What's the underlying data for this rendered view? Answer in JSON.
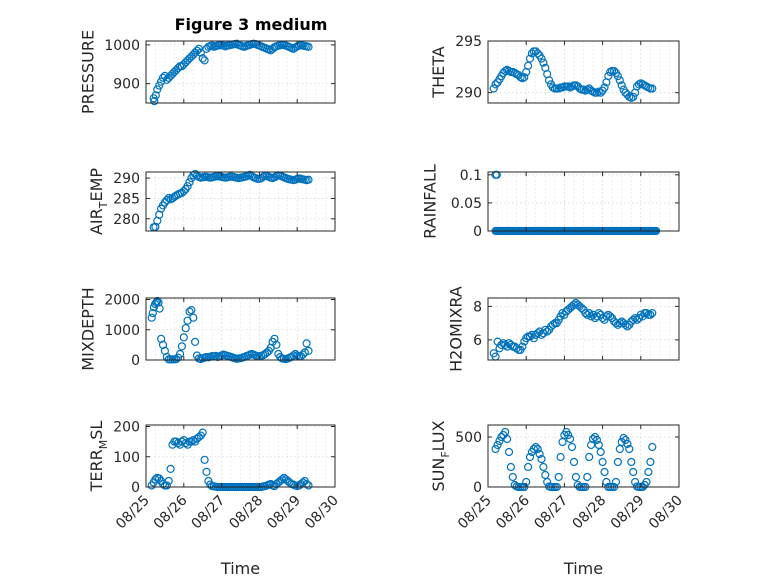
{
  "figure": {
    "title": "Figure 3 medium",
    "marker_color": "#0072bd"
  },
  "chart_data": [
    {
      "type": "scatter",
      "ylabel": "PRESSURE",
      "xlabel": "",
      "ylim": [
        850,
        1010
      ],
      "yticks": [
        900,
        1000
      ],
      "xticks": [
        "08/25",
        "08/26",
        "08/27",
        "08/28",
        "08/29",
        "08/30"
      ],
      "grid": true,
      "x_day": [
        0.2,
        0.22,
        0.26,
        0.3,
        0.35,
        0.4,
        0.45,
        0.5,
        0.55,
        0.6,
        0.65,
        0.7,
        0.75,
        0.8,
        0.85,
        0.9,
        0.95,
        1.0,
        1.05,
        1.1,
        1.15,
        1.2,
        1.25,
        1.3,
        1.35,
        1.4,
        1.45,
        1.5,
        1.55,
        1.6,
        1.65,
        1.7,
        1.75,
        1.8,
        1.85,
        1.9,
        1.95,
        2.0,
        2.05,
        2.1,
        2.15,
        2.2,
        2.25,
        2.3,
        2.35,
        2.4,
        2.45,
        2.5,
        2.55,
        2.6,
        2.65,
        2.7,
        2.75,
        2.8,
        2.85,
        2.9,
        2.95,
        3.0,
        3.05,
        3.1,
        3.15,
        3.2,
        3.25,
        3.3,
        3.35,
        3.4,
        3.45,
        3.5,
        3.55,
        3.6,
        3.65,
        3.7,
        3.75,
        3.8,
        3.85,
        3.9,
        3.95,
        4.0,
        4.05,
        4.1,
        4.15,
        4.2,
        4.25,
        4.3
      ],
      "y": [
        862,
        855,
        870,
        885,
        895,
        905,
        915,
        920,
        910,
        915,
        920,
        925,
        930,
        935,
        940,
        945,
        945,
        950,
        955,
        960,
        965,
        970,
        975,
        980,
        985,
        990,
        980,
        965,
        960,
        990,
        995,
        997,
        998,
        995,
        997,
        998,
        999,
        1000,
        998,
        996,
        998,
        999,
        1000,
        1001,
        1002,
        1003,
        1000,
        998,
        996,
        995,
        997,
        999,
        1000,
        1002,
        1003,
        1002,
        1000,
        998,
        996,
        994,
        992,
        990,
        988,
        986,
        990,
        994,
        996,
        998,
        999,
        1000,
        1000,
        998,
        996,
        994,
        992,
        990,
        993,
        996,
        998,
        999,
        998,
        997,
        996,
        995
      ]
    },
    {
      "type": "scatter",
      "ylabel": "THETA",
      "xlabel": "",
      "ylim": [
        289,
        295
      ],
      "yticks": [
        290,
        295
      ],
      "xticks": [
        "08/25",
        "08/26",
        "08/27",
        "08/28",
        "08/29",
        "08/30"
      ],
      "grid": true,
      "x_day": [
        0.15,
        0.2,
        0.25,
        0.3,
        0.35,
        0.4,
        0.45,
        0.5,
        0.55,
        0.6,
        0.65,
        0.7,
        0.75,
        0.8,
        0.85,
        0.9,
        0.95,
        1.0,
        1.05,
        1.1,
        1.15,
        1.2,
        1.25,
        1.3,
        1.35,
        1.4,
        1.45,
        1.5,
        1.55,
        1.6,
        1.65,
        1.7,
        1.75,
        1.8,
        1.85,
        1.9,
        1.95,
        2.0,
        2.05,
        2.1,
        2.15,
        2.2,
        2.25,
        2.3,
        2.35,
        2.4,
        2.45,
        2.5,
        2.55,
        2.6,
        2.65,
        2.7,
        2.75,
        2.8,
        2.85,
        2.9,
        2.95,
        3.0,
        3.05,
        3.1,
        3.15,
        3.2,
        3.25,
        3.3,
        3.35,
        3.4,
        3.45,
        3.5,
        3.55,
        3.6,
        3.65,
        3.7,
        3.75,
        3.8,
        3.85,
        3.9,
        3.95,
        4.0,
        4.05,
        4.1,
        4.15,
        4.2,
        4.25,
        4.3
      ],
      "y": [
        290.4,
        290.8,
        291.0,
        291.3,
        291.6,
        291.9,
        292.1,
        292.2,
        292.1,
        292.0,
        292.0,
        291.9,
        291.8,
        291.7,
        291.5,
        291.4,
        291.5,
        292.0,
        292.6,
        293.3,
        293.8,
        294.0,
        294.0,
        293.8,
        293.6,
        293.3,
        292.9,
        292.4,
        291.8,
        291.2,
        290.8,
        290.5,
        290.4,
        290.4,
        290.4,
        290.5,
        290.5,
        290.6,
        290.6,
        290.6,
        290.5,
        290.6,
        290.7,
        290.7,
        290.6,
        290.4,
        290.3,
        290.3,
        290.2,
        290.3,
        290.4,
        290.2,
        290.1,
        290.0,
        290.0,
        290.1,
        290.0,
        290.2,
        290.5,
        291.0,
        291.6,
        292.0,
        292.1,
        292.1,
        291.9,
        291.6,
        291.2,
        290.7,
        290.3,
        290.0,
        289.8,
        289.6,
        289.5,
        289.6,
        290.0,
        290.6,
        290.8,
        290.9,
        290.8,
        290.7,
        290.6,
        290.5,
        290.4,
        290.4
      ]
    },
    {
      "type": "scatter",
      "ylabel": "AIR_TEMP",
      "ylabel_main": "AIR",
      "ylabel_sub": "T",
      "ylabel_rest": "EMP",
      "xlabel": "",
      "ylim": [
        277,
        291.5
      ],
      "yticks": [
        280,
        285,
        290
      ],
      "xticks": [
        "08/25",
        "08/26",
        "08/27",
        "08/28",
        "08/29",
        "08/30"
      ],
      "grid": true,
      "x_day": [
        0.2,
        0.25,
        0.3,
        0.35,
        0.4,
        0.45,
        0.5,
        0.55,
        0.6,
        0.65,
        0.7,
        0.75,
        0.8,
        0.85,
        0.9,
        0.95,
        1.0,
        1.05,
        1.1,
        1.15,
        1.2,
        1.25,
        1.3,
        1.35,
        1.4,
        1.45,
        1.5,
        1.55,
        1.6,
        1.65,
        1.7,
        1.75,
        1.8,
        1.85,
        1.9,
        1.95,
        2.0,
        2.05,
        2.1,
        2.15,
        2.2,
        2.25,
        2.3,
        2.35,
        2.4,
        2.45,
        2.5,
        2.55,
        2.6,
        2.65,
        2.7,
        2.75,
        2.8,
        2.85,
        2.9,
        2.95,
        3.0,
        3.05,
        3.1,
        3.15,
        3.2,
        3.25,
        3.3,
        3.35,
        3.4,
        3.45,
        3.5,
        3.55,
        3.6,
        3.65,
        3.7,
        3.75,
        3.8,
        3.85,
        3.9,
        3.95,
        4.0,
        4.05,
        4.1,
        4.15,
        4.2,
        4.25,
        4.3
      ],
      "y": [
        277.9,
        278.0,
        279.5,
        281.0,
        282.5,
        283.3,
        284.0,
        284.6,
        285.1,
        284.8,
        285.0,
        285.4,
        285.7,
        286.0,
        286.2,
        286.4,
        286.8,
        287.3,
        288.0,
        289.0,
        290.0,
        290.7,
        291.0,
        290.6,
        290.3,
        290.1,
        290.2,
        290.3,
        290.3,
        290.2,
        290.1,
        290.2,
        290.3,
        290.4,
        290.5,
        290.4,
        290.3,
        290.2,
        290.1,
        290.2,
        290.3,
        290.4,
        290.3,
        290.2,
        290.1,
        290.0,
        290.1,
        290.2,
        290.3,
        290.4,
        290.6,
        290.8,
        290.5,
        290.2,
        290.0,
        289.8,
        289.8,
        290.0,
        290.3,
        290.6,
        290.5,
        290.3,
        290.1,
        290.0,
        290.2,
        290.5,
        290.7,
        290.6,
        290.4,
        290.2,
        290.0,
        289.8,
        289.7,
        289.6,
        289.5,
        289.6,
        289.8,
        289.9,
        289.8,
        289.7,
        289.6,
        289.5,
        289.6
      ]
    },
    {
      "type": "scatter",
      "ylabel": "RAINFALL",
      "xlabel": "",
      "ylim": [
        0,
        0.105
      ],
      "yticks": [
        0,
        0.05,
        0.1
      ],
      "ytick_labels": [
        "0",
        "0.05",
        "0.1"
      ],
      "xticks": [
        "08/25",
        "08/26",
        "08/27",
        "08/28",
        "08/29",
        "08/30"
      ],
      "grid": true,
      "x_start": 0.2,
      "x_end": 4.4,
      "x_step": 0.025,
      "spikes": [
        {
          "x": 0.2,
          "y": 0.1
        },
        {
          "x": 0.23,
          "y": 0.1
        }
      ],
      "baseline_value": 0
    },
    {
      "type": "scatter",
      "ylabel": "MIXDEPTH",
      "xlabel": "",
      "ylim": [
        0,
        2050
      ],
      "yticks": [
        0,
        1000,
        2000
      ],
      "xticks": [
        "08/25",
        "08/26",
        "08/27",
        "08/28",
        "08/29",
        "08/30"
      ],
      "grid": true,
      "x_day": [
        0.15,
        0.18,
        0.21,
        0.24,
        0.27,
        0.3,
        0.33,
        0.36,
        0.4,
        0.45,
        0.5,
        0.55,
        0.6,
        0.65,
        0.7,
        0.75,
        0.8,
        0.85,
        0.9,
        0.95,
        1.0,
        1.05,
        1.1,
        1.15,
        1.2,
        1.25,
        1.3,
        1.35,
        1.4,
        1.45,
        1.5,
        1.55,
        1.6,
        1.65,
        1.7,
        1.75,
        1.8,
        1.85,
        1.9,
        1.95,
        2.0,
        2.05,
        2.1,
        2.15,
        2.2,
        2.25,
        2.3,
        2.35,
        2.4,
        2.45,
        2.5,
        2.55,
        2.6,
        2.65,
        2.7,
        2.75,
        2.8,
        2.85,
        2.9,
        2.95,
        3.0,
        3.05,
        3.1,
        3.15,
        3.2,
        3.25,
        3.3,
        3.35,
        3.4,
        3.45,
        3.5,
        3.55,
        3.6,
        3.65,
        3.7,
        3.75,
        3.8,
        3.85,
        3.9,
        3.95,
        4.0,
        4.05,
        4.1,
        4.15,
        4.2,
        4.25,
        4.3
      ],
      "y": [
        1400,
        1550,
        1750,
        1850,
        1900,
        1950,
        1900,
        1700,
        700,
        500,
        300,
        100,
        20,
        20,
        20,
        20,
        30,
        80,
        200,
        450,
        750,
        1050,
        1300,
        1600,
        1650,
        1400,
        600,
        150,
        50,
        30,
        60,
        80,
        100,
        90,
        110,
        130,
        120,
        140,
        100,
        120,
        150,
        180,
        160,
        140,
        120,
        100,
        80,
        60,
        40,
        50,
        60,
        80,
        100,
        130,
        150,
        180,
        200,
        180,
        150,
        130,
        120,
        140,
        160,
        200,
        250,
        300,
        400,
        600,
        700,
        500,
        200,
        100,
        50,
        40,
        30,
        50,
        80,
        100,
        150,
        200,
        150,
        120,
        130,
        180,
        250,
        550,
        300
      ]
    },
    {
      "type": "scatter",
      "ylabel": "H2OMIXRA",
      "xlabel": "",
      "ylim": [
        4.8,
        8.5
      ],
      "yticks": [
        6,
        8
      ],
      "xticks": [
        "08/25",
        "08/26",
        "08/27",
        "08/28",
        "08/29",
        "08/30"
      ],
      "grid": true,
      "x_day": [
        0.15,
        0.2,
        0.25,
        0.3,
        0.35,
        0.4,
        0.45,
        0.5,
        0.55,
        0.6,
        0.65,
        0.7,
        0.75,
        0.8,
        0.85,
        0.9,
        0.95,
        1.0,
        1.05,
        1.1,
        1.15,
        1.2,
        1.25,
        1.3,
        1.35,
        1.4,
        1.45,
        1.5,
        1.55,
        1.6,
        1.65,
        1.7,
        1.75,
        1.8,
        1.85,
        1.9,
        1.95,
        2.0,
        2.05,
        2.1,
        2.15,
        2.2,
        2.25,
        2.3,
        2.35,
        2.4,
        2.45,
        2.5,
        2.55,
        2.6,
        2.65,
        2.7,
        2.75,
        2.8,
        2.85,
        2.9,
        2.95,
        3.0,
        3.05,
        3.1,
        3.15,
        3.2,
        3.25,
        3.3,
        3.35,
        3.4,
        3.45,
        3.5,
        3.55,
        3.6,
        3.65,
        3.7,
        3.75,
        3.8,
        3.85,
        3.9,
        3.95,
        4.0,
        4.05,
        4.1,
        4.15,
        4.2,
        4.25,
        4.3
      ],
      "y": [
        5.2,
        5.0,
        5.9,
        5.5,
        5.7,
        5.8,
        5.7,
        5.6,
        5.8,
        5.7,
        5.6,
        5.6,
        5.5,
        5.4,
        5.4,
        5.6,
        5.9,
        6.1,
        6.2,
        6.2,
        6.3,
        6.1,
        6.3,
        6.4,
        6.5,
        6.3,
        6.4,
        6.6,
        6.5,
        6.6,
        6.8,
        6.9,
        7.0,
        7.0,
        7.2,
        7.4,
        7.6,
        7.5,
        7.7,
        7.8,
        7.9,
        8.0,
        8.1,
        8.2,
        8.1,
        8.0,
        7.9,
        7.8,
        7.6,
        7.5,
        7.6,
        7.4,
        7.5,
        7.3,
        7.4,
        7.6,
        7.5,
        7.3,
        7.2,
        7.4,
        7.5,
        7.4,
        7.3,
        7.1,
        7.0,
        6.9,
        7.0,
        7.1,
        7.0,
        6.9,
        6.8,
        6.9,
        7.1,
        7.2,
        7.3,
        7.2,
        7.3,
        7.5,
        7.4,
        7.6,
        7.6,
        7.5,
        7.5,
        7.6
      ]
    },
    {
      "type": "scatter",
      "ylabel": "TERR_MSL",
      "ylabel_main": "TERR",
      "ylabel_sub": "M",
      "ylabel_rest": "SL",
      "xlabel": "Time",
      "ylim": [
        0,
        205
      ],
      "yticks": [
        0,
        100,
        200
      ],
      "xticks": [
        "08/25",
        "08/26",
        "08/27",
        "08/28",
        "08/29",
        "08/30"
      ],
      "grid": true,
      "x_day": [
        0.15,
        0.2,
        0.25,
        0.3,
        0.35,
        0.4,
        0.45,
        0.5,
        0.55,
        0.6,
        0.65,
        0.7,
        0.75,
        0.8,
        0.85,
        0.9,
        0.95,
        1.0,
        1.05,
        1.1,
        1.15,
        1.2,
        1.25,
        1.3,
        1.35,
        1.4,
        1.45,
        1.5,
        1.55,
        1.6,
        1.65,
        1.7,
        1.75,
        1.8,
        1.85,
        1.9,
        1.95,
        2.0,
        2.05,
        2.1,
        2.15,
        2.2,
        2.25,
        2.3,
        2.35,
        2.4,
        2.45,
        2.5,
        2.55,
        2.6,
        2.65,
        2.7,
        2.75,
        2.8,
        2.85,
        2.9,
        2.95,
        3.0,
        3.05,
        3.1,
        3.15,
        3.2,
        3.25,
        3.3,
        3.35,
        3.4,
        3.45,
        3.5,
        3.55,
        3.6,
        3.65,
        3.7,
        3.75,
        3.8,
        3.85,
        3.9,
        3.95,
        4.0,
        4.05,
        4.1,
        4.15,
        4.2,
        4.25,
        4.3
      ],
      "y": [
        5,
        15,
        25,
        30,
        28,
        20,
        10,
        5,
        5,
        20,
        60,
        140,
        150,
        150,
        145,
        140,
        150,
        155,
        145,
        140,
        150,
        150,
        155,
        150,
        160,
        165,
        170,
        180,
        90,
        50,
        20,
        8,
        3,
        2,
        1,
        0,
        0,
        0,
        0,
        0,
        0,
        0,
        0,
        0,
        0,
        0,
        0,
        0,
        0,
        0,
        0,
        0,
        0,
        0,
        0,
        0,
        0,
        0,
        0,
        2,
        3,
        5,
        8,
        10,
        5,
        3,
        10,
        15,
        20,
        25,
        30,
        25,
        20,
        15,
        10,
        8,
        5,
        3,
        5,
        10,
        15,
        20,
        10,
        5
      ]
    },
    {
      "type": "scatter",
      "ylabel": "SUN_FLUX",
      "ylabel_main": "SUN",
      "ylabel_sub": "F",
      "ylabel_rest": "LUX",
      "xlabel": "Time",
      "ylim": [
        0,
        620
      ],
      "yticks": [
        0,
        500
      ],
      "xticks": [
        "08/25",
        "08/26",
        "08/27",
        "08/28",
        "08/29",
        "08/30"
      ],
      "grid": true,
      "x_day": [
        0.2,
        0.25,
        0.3,
        0.35,
        0.4,
        0.45,
        0.5,
        0.55,
        0.6,
        0.65,
        0.7,
        0.75,
        0.8,
        0.85,
        0.9,
        0.95,
        1.0,
        1.05,
        1.1,
        1.15,
        1.2,
        1.25,
        1.3,
        1.35,
        1.4,
        1.45,
        1.5,
        1.55,
        1.6,
        1.65,
        1.7,
        1.75,
        1.8,
        1.85,
        1.9,
        1.95,
        2.0,
        2.05,
        2.1,
        2.15,
        2.2,
        2.25,
        2.3,
        2.35,
        2.4,
        2.45,
        2.5,
        2.55,
        2.6,
        2.65,
        2.7,
        2.75,
        2.8,
        2.85,
        2.9,
        2.95,
        3.0,
        3.05,
        3.1,
        3.15,
        3.2,
        3.25,
        3.3,
        3.35,
        3.4,
        3.45,
        3.5,
        3.55,
        3.6,
        3.65,
        3.7,
        3.75,
        3.8,
        3.85,
        3.9,
        3.95,
        4.0,
        4.05,
        4.1,
        4.15,
        4.2,
        4.25,
        4.3
      ],
      "y": [
        380,
        420,
        460,
        500,
        520,
        550,
        480,
        350,
        200,
        100,
        20,
        5,
        0,
        0,
        0,
        0,
        50,
        200,
        300,
        350,
        380,
        400,
        380,
        330,
        280,
        200,
        120,
        50,
        5,
        0,
        0,
        0,
        0,
        100,
        300,
        450,
        520,
        550,
        520,
        480,
        400,
        250,
        100,
        20,
        0,
        0,
        0,
        0,
        100,
        300,
        420,
        480,
        500,
        470,
        420,
        350,
        250,
        150,
        50,
        0,
        0,
        0,
        0,
        50,
        250,
        380,
        450,
        490,
        470,
        430,
        380,
        250,
        150,
        50,
        5,
        0,
        0,
        0,
        20,
        50,
        150,
        250,
        400
      ]
    }
  ]
}
